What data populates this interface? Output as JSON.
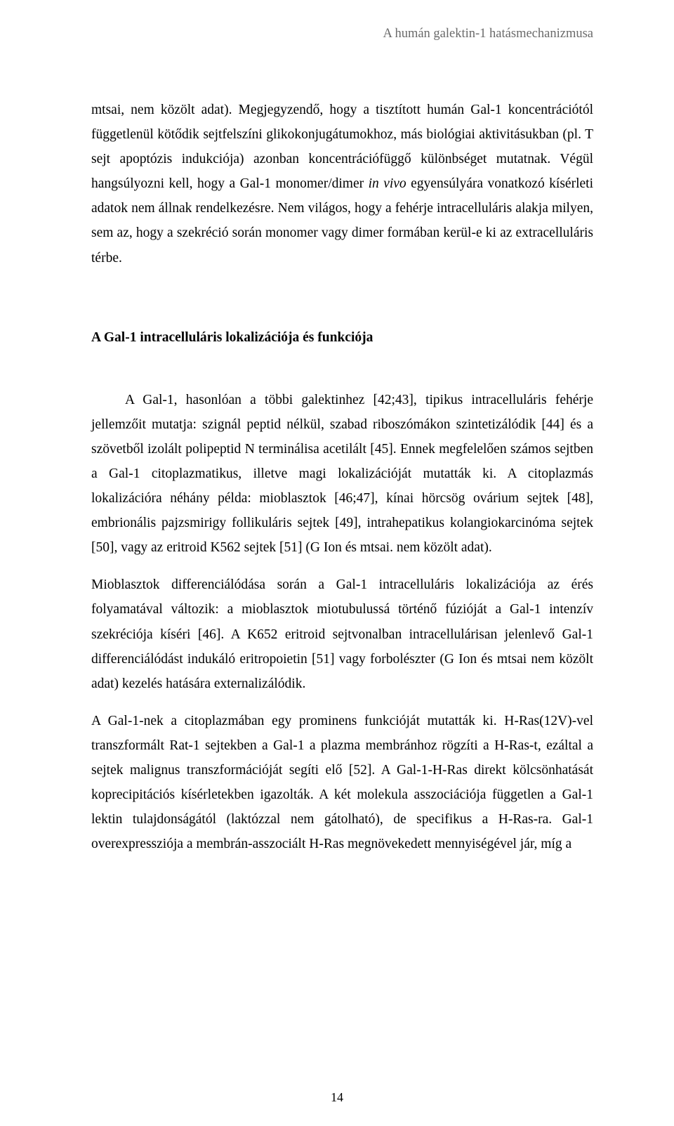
{
  "header": {
    "running_title": "A humán galektin-1 hatásmechanizmusa"
  },
  "paragraphs": {
    "p1_part1": "mtsai, nem közölt adat). Megjegyzendő, hogy a tisztított humán Gal-1 koncentrációtól függetlenül kötődik sejtfelszíni glikokonjugátumokhoz, más biológiai aktivitásukban (pl. T sejt apoptózis indukciója) azonban koncentrációfüggő különbséget mutatnak. Végül hangsúlyozni kell, hogy a Gal-1 monomer/dimer ",
    "p1_italic": "in vivo",
    "p1_part2": " egyensúlyára vonatkozó kísérleti adatok nem állnak rendelkezésre. Nem világos, hogy a fehérje intracelluláris alakja milyen, sem az, hogy a szekréció során monomer vagy dimer formában kerül-e ki az extracelluláris térbe.",
    "heading": "A Gal-1 intracelluláris lokalizációja és funkciója",
    "p2": "A Gal-1, hasonlóan a többi galektinhez [42;43], tipikus intracelluláris fehérje jellemzőit mutatja: szignál peptid nélkül, szabad riboszómákon szintetizálódik [44] és a szövetből izolált polipeptid N terminálisa acetilált [45]. Ennek megfelelően számos sejtben a Gal-1 citoplazmatikus, illetve magi lokalizációját mutatták ki. A citoplazmás lokalizációra néhány példa: mioblasztok [46;47], kínai hörcsög ovárium sejtek [48], embrionális pajzsmirigy follikuláris sejtek [49], intrahepatikus kolangiokarcinóma sejtek [50], vagy az eritroid K562 sejtek [51] (G Ion és mtsai. nem közölt adat).",
    "p3": "Mioblasztok differenciálódása során a Gal-1 intracelluláris lokalizációja az érés folyamatával változik: a mioblasztok miotubulussá történő fúzióját a Gal-1 intenzív szekréciója kíséri [46]. A K652 eritroid sejtvonalban intracellulárisan jelenlevő Gal-1 differenciálódást indukáló eritropoietin [51] vagy forbolészter (G Ion és mtsai nem közölt adat) kezelés hatására externalizálódik.",
    "p4": "A Gal-1-nek a citoplazmában egy prominens funkcióját mutatták ki. H-Ras(12V)-vel transzformált Rat-1 sejtekben a Gal-1 a plazma membránhoz rögzíti a H-Ras-t, ezáltal a sejtek malignus transzformációját segíti elő [52]. A Gal-1-H-Ras direkt kölcsönhatását koprecipitációs kísérletekben igazolták. A két molekula asszociációja független a Gal-1 lektin tulajdonságától (laktózzal nem gátolható), de specifikus a H-Ras-ra. Gal-1 overexpressziója a membrán-asszociált H-Ras megnövekedett mennyiségével jár, míg a"
  },
  "page_number": "14"
}
